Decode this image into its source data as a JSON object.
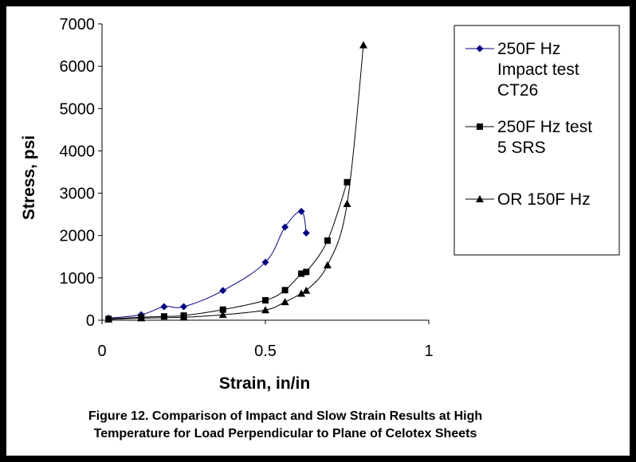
{
  "chart_data": {
    "type": "scatter",
    "title": "",
    "xlabel": "Strain, in/in",
    "ylabel": "Stress, psi",
    "xlim": [
      0,
      1
    ],
    "ylim": [
      0,
      7000
    ],
    "x_ticks": [
      "0",
      "0.5",
      "1"
    ],
    "x_tick_values": [
      0,
      0.5,
      1
    ],
    "y_ticks": [
      "0",
      "1000",
      "2000",
      "3000",
      "4000",
      "5000",
      "6000",
      "7000"
    ],
    "y_tick_values": [
      0,
      1000,
      2000,
      3000,
      4000,
      5000,
      6000,
      7000
    ],
    "legend_position": "right",
    "series": [
      {
        "name": "250F Hz Impact test CT26",
        "legend_lines": [
          "250F Hz",
          "Impact test",
          "CT26"
        ],
        "marker": "diamond",
        "color": "#000080",
        "x": [
          0.02,
          0.12,
          0.19,
          0.25,
          0.37,
          0.5,
          0.56,
          0.61,
          0.625
        ],
        "y": [
          50,
          130,
          320,
          320,
          700,
          1370,
          2200,
          2570,
          2060
        ]
      },
      {
        "name": "250F Hz test 5 SRS",
        "legend_lines": [
          "250F Hz test",
          "5 SRS"
        ],
        "marker": "square",
        "color": "#000000",
        "x": [
          0.02,
          0.12,
          0.19,
          0.25,
          0.37,
          0.5,
          0.56,
          0.61,
          0.625,
          0.69,
          0.75
        ],
        "y": [
          30,
          70,
          90,
          110,
          250,
          470,
          710,
          1100,
          1140,
          1880,
          3260
        ]
      },
      {
        "name": "OR 150F Hz",
        "legend_lines": [
          "OR 150F Hz"
        ],
        "marker": "triangle",
        "color": "#000000",
        "x": [
          0.02,
          0.12,
          0.25,
          0.37,
          0.5,
          0.56,
          0.61,
          0.625,
          0.69,
          0.75,
          0.8
        ],
        "y": [
          20,
          50,
          70,
          130,
          240,
          430,
          630,
          700,
          1300,
          2750,
          6500
        ]
      }
    ]
  },
  "caption": {
    "line1": "Figure 12.  Comparison of Impact and Slow Strain Results at High",
    "line2": "Temperature for Load Perpendicular to Plane of Celotex Sheets"
  }
}
